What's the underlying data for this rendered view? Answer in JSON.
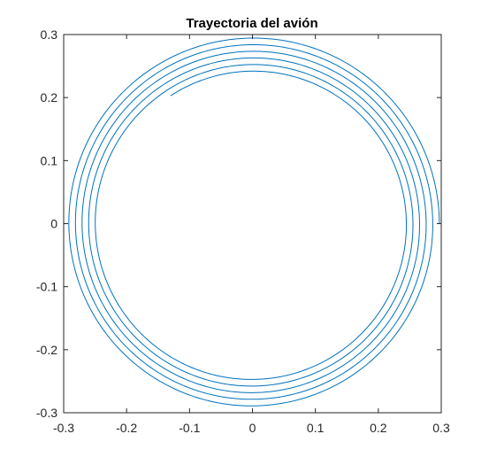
{
  "chart_data": {
    "type": "line",
    "title": "Trayectoria del avión",
    "xlabel": "",
    "ylabel": "",
    "xlim": [
      -0.3,
      0.3
    ],
    "ylim": [
      -0.3,
      0.3
    ],
    "xticks": [
      "-0.3",
      "-0.2",
      "-0.1",
      "0",
      "0.1",
      "0.2",
      "0.3"
    ],
    "yticks": [
      "0.3",
      "0.2",
      "0.1",
      "0",
      "-0.1",
      "-0.2",
      "-0.3"
    ],
    "grid": false,
    "series": [
      {
        "color": "#0072BD",
        "description_of_shape": "inward spiral",
        "start_point": [
          0.297,
          0.0
        ],
        "end_point": [
          -0.13,
          0.203
        ],
        "start_radius": 0.297,
        "end_radius": 0.241,
        "turns": 5.35,
        "direction": "counterclockwise"
      }
    ]
  }
}
